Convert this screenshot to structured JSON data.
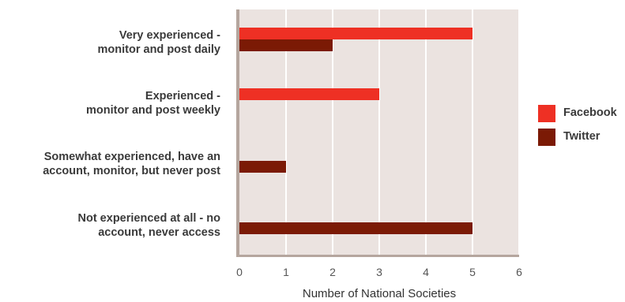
{
  "chart_data": {
    "type": "bar",
    "orientation": "horizontal",
    "categories": [
      "Very experienced -\nmonitor and post daily",
      "Experienced -\nmonitor and post weekly",
      "Somewhat experienced, have an\naccount, monitor, but never post",
      "Not experienced at all - no\naccount, never access"
    ],
    "series": [
      {
        "name": "Facebook",
        "color": "#ee3024",
        "values": [
          5,
          3,
          0,
          0
        ]
      },
      {
        "name": "Twitter",
        "color": "#7b1a05",
        "values": [
          2,
          0,
          1,
          5
        ]
      }
    ],
    "xlabel": "Number of National Societies",
    "xlim": [
      0,
      6
    ],
    "xticks": [
      0,
      1,
      2,
      3,
      4,
      5,
      6
    ],
    "grid": true,
    "legend": "right",
    "plot_background": "#ebe3e0",
    "axis_color": "#b5a69e"
  }
}
